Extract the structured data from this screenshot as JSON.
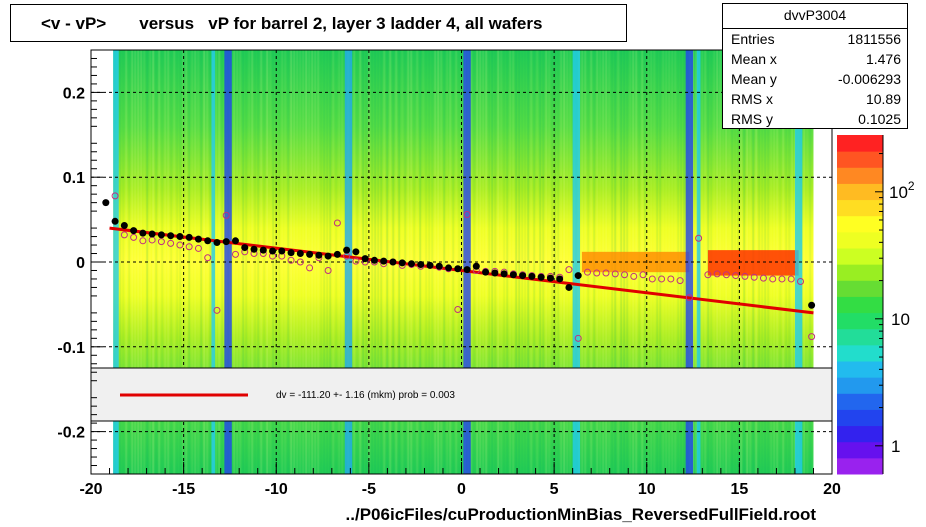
{
  "title": "<v - vP>       versus   vP for barrel 2, layer 3 ladder 4, all wafers",
  "stats": {
    "name": "dvvP3004",
    "rows": [
      {
        "label": "Entries",
        "value": "1811556"
      },
      {
        "label": "Mean x",
        "value": "1.476"
      },
      {
        "label": "Mean y",
        "value": "-0.006293"
      },
      {
        "label": "RMS x",
        "value": "10.89"
      },
      {
        "label": "RMS y",
        "value": "0.1025"
      }
    ]
  },
  "fit_legend": "dv = -111.20 +-  1.16 (mkm) prob = 0.003",
  "footer_label": "../P06icFiles/cuProductionMinBias_ReversedFullField.root",
  "colors": {
    "fit_line": "#e00000",
    "profile_points": "#000000",
    "open_markers": "#c03080",
    "plot_background": "#ffff33"
  },
  "chart_data": {
    "type": "heatmap",
    "x_axis": {
      "range": [
        -20,
        20
      ],
      "ticks": [
        -20,
        -15,
        -10,
        -5,
        0,
        5,
        10,
        15,
        20
      ],
      "labels": [
        "-20",
        "-15",
        "-10",
        "-5",
        "0",
        "5",
        "10",
        "15",
        "20"
      ]
    },
    "y_axis": {
      "range": [
        -0.25,
        0.25
      ],
      "ticks": [
        -0.2,
        -0.1,
        0,
        0.1,
        0.2
      ],
      "labels": [
        "-0.2",
        "-0.1",
        "0",
        "0.1",
        "0.2"
      ]
    },
    "grid": true,
    "colorbar": {
      "scale": "log",
      "labels": [
        "1",
        "10",
        "10^2"
      ],
      "values": [
        1,
        10,
        100
      ]
    },
    "fit_line": {
      "x": [
        -19,
        19
      ],
      "y": [
        0.04,
        -0.06
      ]
    },
    "profile_points": {
      "x": [
        -19.2,
        -18.7,
        -18.2,
        -17.7,
        -17.2,
        -16.7,
        -16.2,
        -15.7,
        -15.2,
        -14.7,
        -14.2,
        -13.7,
        -13.2,
        -12.7,
        -12.2,
        -11.7,
        -11.2,
        -10.7,
        -10.2,
        -9.7,
        -9.2,
        -8.7,
        -8.2,
        -7.7,
        -7.2,
        -6.7,
        -6.2,
        -5.7,
        -5.2,
        -4.7,
        -4.2,
        -3.7,
        -3.2,
        -2.7,
        -2.2,
        -1.7,
        -1.2,
        -0.7,
        -0.2,
        0.3,
        0.8,
        1.3,
        1.8,
        2.3,
        2.8,
        3.3,
        3.8,
        4.3,
        4.8,
        5.3,
        5.8,
        6.3,
        18.9
      ],
      "y": [
        0.07,
        0.048,
        0.043,
        0.037,
        0.034,
        0.033,
        0.032,
        0.031,
        0.03,
        0.029,
        0.027,
        0.025,
        0.023,
        0.024,
        0.025,
        0.017,
        0.015,
        0.014,
        0.013,
        0.013,
        0.011,
        0.01,
        0.009,
        0.008,
        0.007,
        0.009,
        0.014,
        0.012,
        0.004,
        0.002,
        0.001,
        0.0,
        -0.001,
        -0.002,
        -0.003,
        -0.004,
        -0.005,
        -0.007,
        -0.008,
        -0.009,
        -0.005,
        -0.012,
        -0.013,
        -0.014,
        -0.015,
        -0.016,
        -0.017,
        -0.018,
        -0.019,
        -0.02,
        -0.03,
        -0.016,
        -0.051
      ]
    },
    "open_markers": {
      "x": [
        -18.7,
        -18.2,
        -17.7,
        -17.2,
        -16.7,
        -16.2,
        -15.7,
        -15.2,
        -14.7,
        -14.2,
        -13.7,
        -13.2,
        -12.7,
        -12.2,
        -11.7,
        -11.2,
        -10.7,
        -10.2,
        -9.7,
        -9.2,
        -8.7,
        -8.2,
        -7.7,
        -7.2,
        -6.7,
        -6.2,
        -5.7,
        -5.2,
        -4.7,
        -4.2,
        -3.7,
        -3.2,
        -2.7,
        -2.2,
        -1.7,
        -1.2,
        -0.7,
        -0.2,
        0.3,
        0.8,
        1.3,
        1.8,
        2.3,
        2.8,
        3.3,
        3.8,
        4.3,
        4.8,
        5.3,
        5.8,
        6.3,
        6.8,
        7.3,
        7.8,
        8.3,
        8.8,
        9.3,
        9.8,
        10.3,
        10.8,
        11.3,
        11.8,
        12.3,
        12.8,
        13.3,
        13.8,
        14.3,
        14.8,
        15.3,
        15.8,
        16.3,
        16.8,
        17.3,
        17.8,
        18.3,
        18.9
      ],
      "y": [
        0.078,
        0.032,
        0.029,
        0.025,
        0.026,
        0.024,
        0.022,
        0.02,
        0.018,
        0.016,
        0.005,
        -0.057,
        0.055,
        0.009,
        0.012,
        0.01,
        0.01,
        0.007,
        0.007,
        0.002,
        0.0,
        -0.007,
        0.005,
        -0.01,
        0.046,
        0.007,
        0.001,
        0.0,
        0.0,
        -0.002,
        0.0,
        -0.004,
        -0.003,
        -0.005,
        -0.004,
        -0.006,
        -0.008,
        -0.056,
        0.056,
        -0.01,
        -0.011,
        -0.011,
        -0.012,
        -0.014,
        -0.015,
        -0.016,
        -0.017,
        -0.017,
        -0.018,
        -0.009,
        -0.09,
        -0.012,
        -0.013,
        -0.013,
        -0.014,
        -0.015,
        -0.017,
        -0.015,
        -0.02,
        -0.02,
        -0.02,
        -0.022,
        -0.042,
        0.028,
        -0.015,
        -0.014,
        -0.015,
        -0.016,
        -0.017,
        -0.018,
        -0.019,
        -0.02,
        -0.02,
        -0.02,
        -0.023,
        -0.088
      ]
    }
  }
}
